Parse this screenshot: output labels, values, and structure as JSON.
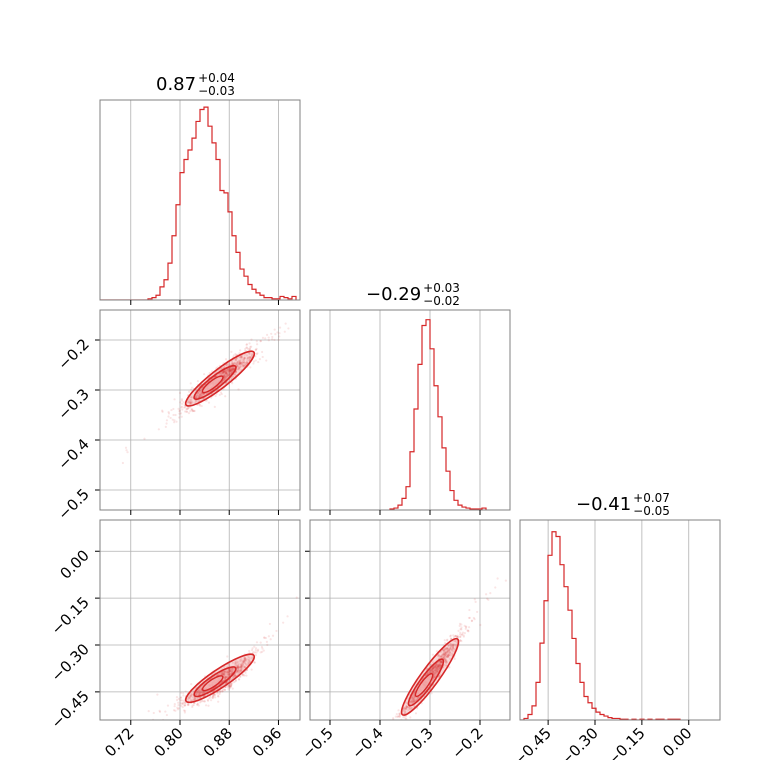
{
  "colors": {
    "accent": "#d62728",
    "grid": "#b0b0b0",
    "frame": "#808080"
  },
  "chart_data": {
    "type": "corner",
    "grid": true,
    "parameters": [
      {
        "title": {
          "value": "0.87",
          "plus": "+0.04",
          "minus": "−0.03"
        },
        "range": [
          0.67,
          0.995
        ],
        "ticks": [
          0.72,
          0.8,
          0.88,
          0.96
        ],
        "tick_labels": [
          "0.72",
          "0.80",
          "0.88",
          "0.96"
        ],
        "hist": {
          "start": 0.67,
          "width": 0.0065,
          "counts": [
            0,
            0,
            0,
            0,
            0,
            0,
            0,
            0,
            0,
            0,
            0,
            0,
            1,
            2,
            4,
            11,
            17,
            31,
            54,
            80,
            107,
            118,
            126,
            136,
            150,
            160,
            162,
            146,
            132,
            118,
            92,
            90,
            74,
            54,
            40,
            26,
            20,
            13,
            9,
            6,
            4,
            2,
            2,
            1,
            1,
            3,
            2,
            1,
            3
          ]
        },
        "hist_ylim": [
          0,
          168
        ]
      },
      {
        "title": {
          "value": "−0.29",
          "plus": "+0.03",
          "minus": "−0.02"
        },
        "range": [
          -0.54,
          -0.14
        ],
        "ticks": [
          -0.5,
          -0.4,
          -0.3,
          -0.2
        ],
        "tick_labels": [
          "−0.5",
          "−0.4",
          "−0.3",
          "−0.2"
        ],
        "tick_labels_y": [
          "−0.5",
          "−0.4",
          "−0.3",
          "−0.2"
        ],
        "hist": {
          "start": -0.38,
          "width": 0.008,
          "counts": [
            1,
            2,
            5,
            12,
            24,
            60,
            104,
            150,
            190,
            196,
            166,
            128,
            96,
            64,
            40,
            20,
            10,
            5,
            3,
            2,
            1,
            1,
            1,
            2
          ]
        },
        "hist_ylim": [
          0,
          206
        ]
      },
      {
        "title": {
          "value": "−0.41",
          "plus": "+0.07",
          "minus": "−0.05"
        },
        "range": [
          -0.54,
          0.1
        ],
        "ticks": [
          -0.45,
          -0.3,
          -0.15,
          0.0
        ],
        "tick_labels": [
          "−0.45",
          "−0.30",
          "−0.15",
          "0.00"
        ],
        "hist": {
          "start": -0.54,
          "width": 0.0128,
          "counts": [
            0,
            2,
            7,
            18,
            48,
            98,
            152,
            210,
            240,
            234,
            198,
            170,
            140,
            104,
            72,
            48,
            30,
            22,
            15,
            10,
            7,
            5,
            3,
            2,
            2,
            1,
            1,
            0,
            1,
            0,
            1,
            0,
            1,
            0,
            1,
            1,
            0,
            1,
            1,
            1
          ]
        },
        "hist_ylim": [
          0,
          255
        ]
      }
    ]
  }
}
